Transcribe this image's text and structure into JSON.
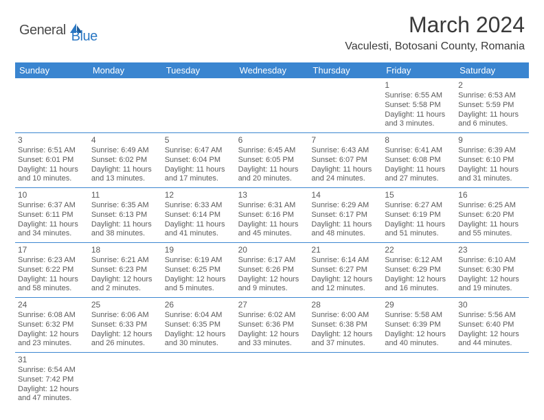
{
  "logo": {
    "general": "General",
    "blue": "Blue"
  },
  "title": "March 2024",
  "location": "Vaculesti, Botosani County, Romania",
  "colors": {
    "header_bg": "#3a85d0",
    "header_text": "#ffffff",
    "cell_text": "#5a5a5a",
    "border": "#3a85d0",
    "logo_blue": "#2b78c4"
  },
  "day_headers": [
    "Sunday",
    "Monday",
    "Tuesday",
    "Wednesday",
    "Thursday",
    "Friday",
    "Saturday"
  ],
  "weeks": [
    [
      null,
      null,
      null,
      null,
      null,
      {
        "n": "1",
        "sr": "Sunrise: 6:55 AM",
        "ss": "Sunset: 5:58 PM",
        "d1": "Daylight: 11 hours",
        "d2": "and 3 minutes."
      },
      {
        "n": "2",
        "sr": "Sunrise: 6:53 AM",
        "ss": "Sunset: 5:59 PM",
        "d1": "Daylight: 11 hours",
        "d2": "and 6 minutes."
      }
    ],
    [
      {
        "n": "3",
        "sr": "Sunrise: 6:51 AM",
        "ss": "Sunset: 6:01 PM",
        "d1": "Daylight: 11 hours",
        "d2": "and 10 minutes."
      },
      {
        "n": "4",
        "sr": "Sunrise: 6:49 AM",
        "ss": "Sunset: 6:02 PM",
        "d1": "Daylight: 11 hours",
        "d2": "and 13 minutes."
      },
      {
        "n": "5",
        "sr": "Sunrise: 6:47 AM",
        "ss": "Sunset: 6:04 PM",
        "d1": "Daylight: 11 hours",
        "d2": "and 17 minutes."
      },
      {
        "n": "6",
        "sr": "Sunrise: 6:45 AM",
        "ss": "Sunset: 6:05 PM",
        "d1": "Daylight: 11 hours",
        "d2": "and 20 minutes."
      },
      {
        "n": "7",
        "sr": "Sunrise: 6:43 AM",
        "ss": "Sunset: 6:07 PM",
        "d1": "Daylight: 11 hours",
        "d2": "and 24 minutes."
      },
      {
        "n": "8",
        "sr": "Sunrise: 6:41 AM",
        "ss": "Sunset: 6:08 PM",
        "d1": "Daylight: 11 hours",
        "d2": "and 27 minutes."
      },
      {
        "n": "9",
        "sr": "Sunrise: 6:39 AM",
        "ss": "Sunset: 6:10 PM",
        "d1": "Daylight: 11 hours",
        "d2": "and 31 minutes."
      }
    ],
    [
      {
        "n": "10",
        "sr": "Sunrise: 6:37 AM",
        "ss": "Sunset: 6:11 PM",
        "d1": "Daylight: 11 hours",
        "d2": "and 34 minutes."
      },
      {
        "n": "11",
        "sr": "Sunrise: 6:35 AM",
        "ss": "Sunset: 6:13 PM",
        "d1": "Daylight: 11 hours",
        "d2": "and 38 minutes."
      },
      {
        "n": "12",
        "sr": "Sunrise: 6:33 AM",
        "ss": "Sunset: 6:14 PM",
        "d1": "Daylight: 11 hours",
        "d2": "and 41 minutes."
      },
      {
        "n": "13",
        "sr": "Sunrise: 6:31 AM",
        "ss": "Sunset: 6:16 PM",
        "d1": "Daylight: 11 hours",
        "d2": "and 45 minutes."
      },
      {
        "n": "14",
        "sr": "Sunrise: 6:29 AM",
        "ss": "Sunset: 6:17 PM",
        "d1": "Daylight: 11 hours",
        "d2": "and 48 minutes."
      },
      {
        "n": "15",
        "sr": "Sunrise: 6:27 AM",
        "ss": "Sunset: 6:19 PM",
        "d1": "Daylight: 11 hours",
        "d2": "and 51 minutes."
      },
      {
        "n": "16",
        "sr": "Sunrise: 6:25 AM",
        "ss": "Sunset: 6:20 PM",
        "d1": "Daylight: 11 hours",
        "d2": "and 55 minutes."
      }
    ],
    [
      {
        "n": "17",
        "sr": "Sunrise: 6:23 AM",
        "ss": "Sunset: 6:22 PM",
        "d1": "Daylight: 11 hours",
        "d2": "and 58 minutes."
      },
      {
        "n": "18",
        "sr": "Sunrise: 6:21 AM",
        "ss": "Sunset: 6:23 PM",
        "d1": "Daylight: 12 hours",
        "d2": "and 2 minutes."
      },
      {
        "n": "19",
        "sr": "Sunrise: 6:19 AM",
        "ss": "Sunset: 6:25 PM",
        "d1": "Daylight: 12 hours",
        "d2": "and 5 minutes."
      },
      {
        "n": "20",
        "sr": "Sunrise: 6:17 AM",
        "ss": "Sunset: 6:26 PM",
        "d1": "Daylight: 12 hours",
        "d2": "and 9 minutes."
      },
      {
        "n": "21",
        "sr": "Sunrise: 6:14 AM",
        "ss": "Sunset: 6:27 PM",
        "d1": "Daylight: 12 hours",
        "d2": "and 12 minutes."
      },
      {
        "n": "22",
        "sr": "Sunrise: 6:12 AM",
        "ss": "Sunset: 6:29 PM",
        "d1": "Daylight: 12 hours",
        "d2": "and 16 minutes."
      },
      {
        "n": "23",
        "sr": "Sunrise: 6:10 AM",
        "ss": "Sunset: 6:30 PM",
        "d1": "Daylight: 12 hours",
        "d2": "and 19 minutes."
      }
    ],
    [
      {
        "n": "24",
        "sr": "Sunrise: 6:08 AM",
        "ss": "Sunset: 6:32 PM",
        "d1": "Daylight: 12 hours",
        "d2": "and 23 minutes."
      },
      {
        "n": "25",
        "sr": "Sunrise: 6:06 AM",
        "ss": "Sunset: 6:33 PM",
        "d1": "Daylight: 12 hours",
        "d2": "and 26 minutes."
      },
      {
        "n": "26",
        "sr": "Sunrise: 6:04 AM",
        "ss": "Sunset: 6:35 PM",
        "d1": "Daylight: 12 hours",
        "d2": "and 30 minutes."
      },
      {
        "n": "27",
        "sr": "Sunrise: 6:02 AM",
        "ss": "Sunset: 6:36 PM",
        "d1": "Daylight: 12 hours",
        "d2": "and 33 minutes."
      },
      {
        "n": "28",
        "sr": "Sunrise: 6:00 AM",
        "ss": "Sunset: 6:38 PM",
        "d1": "Daylight: 12 hours",
        "d2": "and 37 minutes."
      },
      {
        "n": "29",
        "sr": "Sunrise: 5:58 AM",
        "ss": "Sunset: 6:39 PM",
        "d1": "Daylight: 12 hours",
        "d2": "and 40 minutes."
      },
      {
        "n": "30",
        "sr": "Sunrise: 5:56 AM",
        "ss": "Sunset: 6:40 PM",
        "d1": "Daylight: 12 hours",
        "d2": "and 44 minutes."
      }
    ],
    [
      {
        "n": "31",
        "sr": "Sunrise: 6:54 AM",
        "ss": "Sunset: 7:42 PM",
        "d1": "Daylight: 12 hours",
        "d2": "and 47 minutes."
      },
      null,
      null,
      null,
      null,
      null,
      null
    ]
  ]
}
